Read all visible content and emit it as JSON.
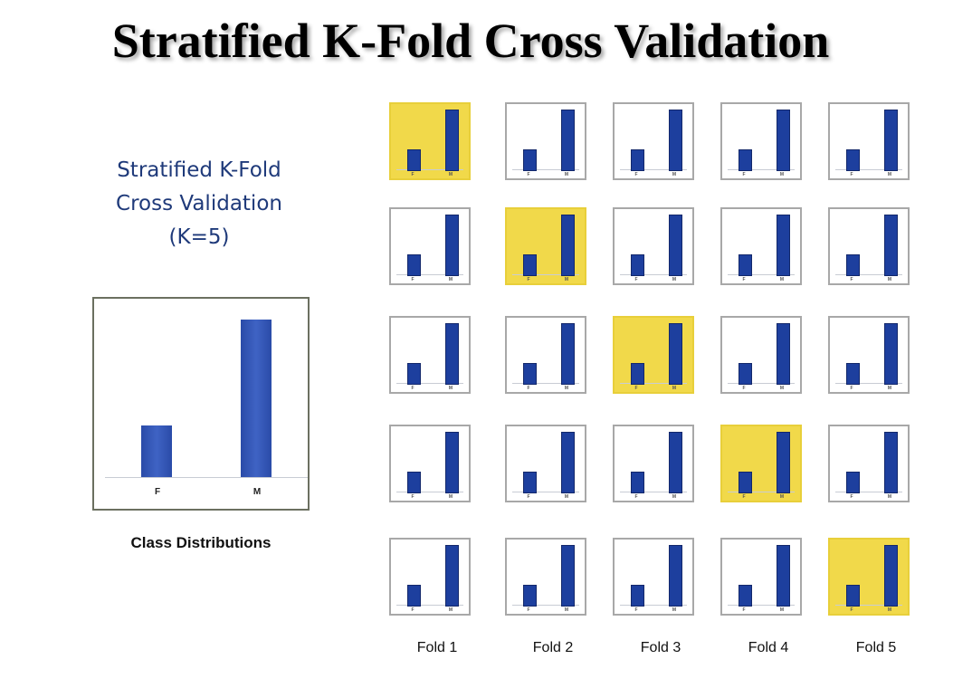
{
  "title": "Stratified K-Fold Cross Validation",
  "side_title": [
    "Stratified K-Fold",
    "Cross Validation",
    "(K=5)"
  ],
  "class_caption": "Class Distributions",
  "colors": {
    "bar": "#2d4fb0",
    "highlight": "#f1d94a",
    "title_blue": "#1f3a7a"
  },
  "chart_data": {
    "type": "bar",
    "title": "Class Distributions",
    "categories": [
      "F",
      "M"
    ],
    "values": [
      0.33,
      1.0
    ],
    "folds": [
      "Fold 1",
      "Fold 2",
      "Fold 3",
      "Fold 4",
      "Fold 5"
    ],
    "grid_rows": 5,
    "highlight": "test fold on diagonal (row i, Fold i)"
  }
}
